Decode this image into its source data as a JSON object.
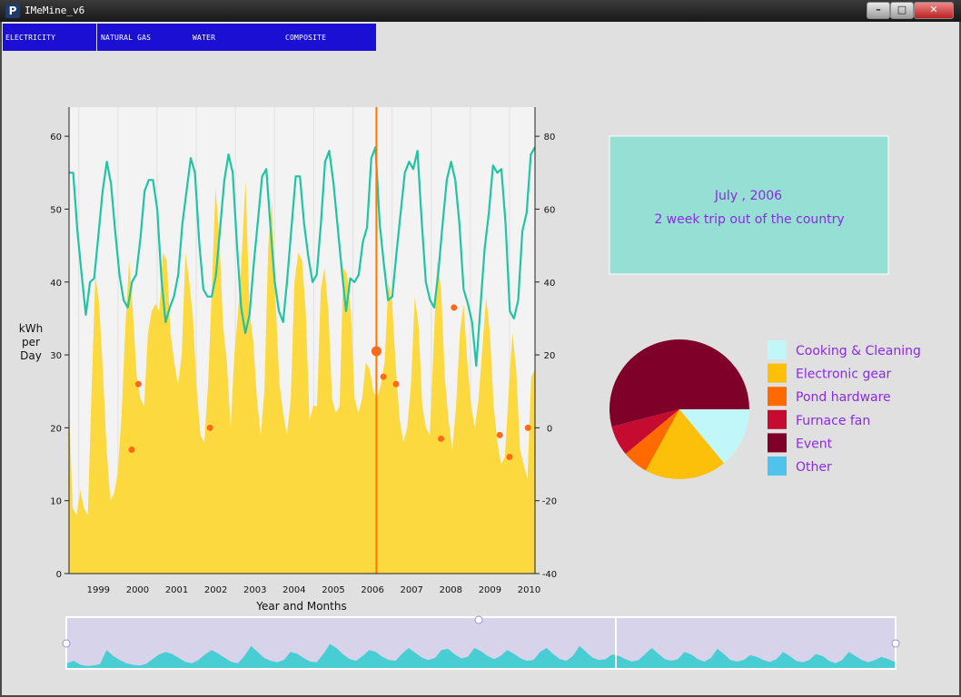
{
  "window": {
    "title": "IMeMine_v6",
    "icon_letter": "P",
    "minimize": "–",
    "maximize": "□",
    "close": "✕"
  },
  "menu": {
    "items": [
      "ELECTRICITY",
      "NATURAL GAS",
      "WATER",
      "COMPOSITE"
    ]
  },
  "chart_data": [
    {
      "type": "area",
      "xlabel": "Year and Months",
      "ylabel": [
        "kWh",
        "per",
        "Day"
      ],
      "y_ticks": [
        0,
        10,
        20,
        30,
        40,
        50,
        60
      ],
      "y2_ticks": [
        -40,
        -20,
        0,
        20,
        40,
        60,
        80
      ],
      "x_ticks": [
        "1999",
        "2000",
        "2001",
        "2002",
        "2003",
        "2004",
        "2005",
        "2006",
        "2007",
        "2008",
        "2009",
        "2010"
      ],
      "ylim": [
        0,
        64
      ],
      "y2lim": [
        -40,
        88
      ],
      "series": [
        {
          "values": [
            22.5,
            9,
            8,
            11.5,
            9,
            8,
            25,
            41,
            37,
            28,
            17,
            10,
            11,
            14,
            22,
            34,
            43,
            36,
            27,
            24,
            23,
            33,
            36,
            37,
            36,
            44,
            43,
            33,
            29,
            26,
            30,
            44,
            40,
            35,
            25,
            19,
            18,
            26,
            39,
            53,
            46,
            34,
            29,
            20,
            30,
            36,
            44,
            54,
            36,
            32,
            24,
            19,
            25,
            45,
            51,
            37,
            26,
            22,
            19,
            24,
            40,
            44,
            43,
            36,
            21,
            23,
            23,
            39,
            42,
            36,
            24,
            22,
            23,
            42,
            41,
            36,
            24,
            22,
            24,
            29,
            28,
            25,
            24,
            26,
            29,
            40,
            37,
            28,
            21,
            18,
            20,
            26,
            38,
            34,
            23,
            20,
            19,
            31,
            43,
            39,
            27,
            21,
            17,
            23,
            33,
            37,
            29,
            23,
            20,
            24,
            31,
            38,
            33,
            23,
            18,
            15,
            16,
            25,
            33,
            28,
            17,
            15,
            13,
            27,
            28
          ]
        },
        {
          "values": [
            70,
            70,
            54,
            42,
            31,
            40,
            41,
            53,
            65,
            73,
            67,
            54,
            42,
            35,
            33,
            40,
            42,
            52,
            65,
            68,
            68,
            60,
            41,
            29,
            33,
            36,
            42,
            56,
            65,
            74,
            70,
            51,
            38,
            36,
            36,
            42,
            55,
            68,
            75,
            70,
            50,
            33,
            26,
            31,
            45,
            57,
            69,
            71,
            55,
            40,
            32,
            29,
            41,
            55,
            69,
            69,
            56,
            47,
            40,
            42,
            56,
            73,
            76,
            67,
            55,
            43,
            32,
            41,
            40,
            42,
            51,
            55,
            74,
            77,
            56,
            45,
            35,
            36,
            48,
            59,
            70,
            73,
            71,
            76,
            57,
            40,
            35,
            33,
            43,
            56,
            68,
            73,
            68,
            56,
            38,
            34,
            29,
            17,
            33,
            49,
            59,
            72,
            70,
            71,
            56,
            32,
            30,
            35,
            54,
            59,
            75,
            77
          ]
        }
      ],
      "events": [
        {
          "x": 2000.35,
          "y": 17
        },
        {
          "x": 2000.52,
          "y": 26
        },
        {
          "x": 2002.35,
          "y": 20
        },
        {
          "x": 2006.6,
          "y": 30.5
        },
        {
          "x": 2006.78,
          "y": 27
        },
        {
          "x": 2007.1,
          "y": 26
        },
        {
          "x": 2008.25,
          "y": 18.5
        },
        {
          "x": 2008.58,
          "y": 36.5
        },
        {
          "x": 2009.75,
          "y": 19
        },
        {
          "x": 2010.0,
          "y": 16
        },
        {
          "x": 2010.47,
          "y": 20
        }
      ],
      "cursor": {
        "x": 2006.6
      }
    },
    {
      "type": "pie",
      "legend": [
        "Cooking & Cleaning",
        "Electronic gear",
        "Pond hardware",
        "Furnace fan",
        "Event",
        "Other"
      ],
      "values": [
        14,
        19,
        6,
        7,
        54,
        0
      ],
      "colors": [
        "#c1f7f8",
        "#fcc00a",
        "#ff6a00",
        "#c60b31",
        "#7f0028",
        "#4fc3ec"
      ]
    }
  ],
  "annotation": {
    "date": "July , 2006",
    "text": "2 week trip out of the country"
  },
  "overview": {
    "values": [
      0.12,
      0.18,
      0.08,
      0.05,
      0.06,
      0.1,
      0.45,
      0.3,
      0.2,
      0.12,
      0.08,
      0.06,
      0.1,
      0.22,
      0.34,
      0.4,
      0.35,
      0.25,
      0.15,
      0.12,
      0.2,
      0.34,
      0.45,
      0.36,
      0.25,
      0.15,
      0.12,
      0.3,
      0.55,
      0.4,
      0.25,
      0.18,
      0.14,
      0.2,
      0.4,
      0.36,
      0.25,
      0.16,
      0.14,
      0.35,
      0.6,
      0.5,
      0.34,
      0.22,
      0.18,
      0.3,
      0.45,
      0.4,
      0.28,
      0.2,
      0.18,
      0.36,
      0.5,
      0.38,
      0.26,
      0.2,
      0.25,
      0.45,
      0.48,
      0.34,
      0.24,
      0.28,
      0.5,
      0.42,
      0.3,
      0.22,
      0.3,
      0.45,
      0.36,
      0.24,
      0.18,
      0.2,
      0.4,
      0.5,
      0.35,
      0.22,
      0.18,
      0.3,
      0.55,
      0.4,
      0.26,
      0.2,
      0.22,
      0.34,
      0.3,
      0.22,
      0.16,
      0.2,
      0.35,
      0.5,
      0.36,
      0.22,
      0.18,
      0.22,
      0.4,
      0.34,
      0.22,
      0.16,
      0.25,
      0.48,
      0.35,
      0.2,
      0.16,
      0.2,
      0.32,
      0.28,
      0.2,
      0.15,
      0.22,
      0.4,
      0.3,
      0.18,
      0.14,
      0.2,
      0.35,
      0.3,
      0.18,
      0.12,
      0.2,
      0.4,
      0.3,
      0.2,
      0.14,
      0.2,
      0.28,
      0.22,
      0.15
    ]
  }
}
